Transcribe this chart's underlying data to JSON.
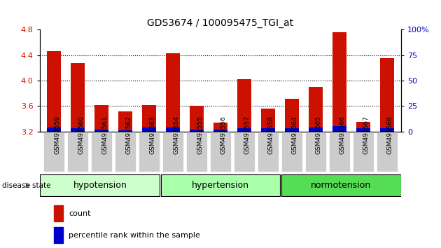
{
  "title": "GDS3674 / 100095475_TGI_at",
  "samples": [
    "GSM493559",
    "GSM493560",
    "GSM493561",
    "GSM493562",
    "GSM493563",
    "GSM493554",
    "GSM493555",
    "GSM493556",
    "GSM493557",
    "GSM493558",
    "GSM493564",
    "GSM493565",
    "GSM493566",
    "GSM493567",
    "GSM493568"
  ],
  "count_values": [
    4.46,
    4.28,
    3.61,
    3.52,
    3.61,
    4.43,
    3.6,
    3.34,
    4.02,
    3.56,
    3.71,
    3.9,
    4.76,
    3.35,
    4.35
  ],
  "percentile_values": [
    4,
    3,
    2,
    1,
    4,
    4,
    2,
    2,
    3,
    3,
    3,
    4,
    5,
    3,
    3
  ],
  "groups": [
    {
      "name": "hypotension",
      "start": 0,
      "end": 5,
      "color": "#ccffcc"
    },
    {
      "name": "hypertension",
      "start": 5,
      "end": 10,
      "color": "#aaffaa"
    },
    {
      "name": "normotension",
      "start": 10,
      "end": 15,
      "color": "#55dd55"
    }
  ],
  "ymin": 3.2,
  "ymax": 4.8,
  "y_ticks": [
    3.2,
    3.6,
    4.0,
    4.4,
    4.8
  ],
  "right_yticks": [
    0,
    25,
    50,
    75,
    100
  ],
  "right_ytick_labels": [
    "0",
    "25",
    "50",
    "75",
    "100%"
  ],
  "bar_color": "#cc1100",
  "percentile_color": "#0000cc",
  "bar_width": 0.6,
  "label_color_left": "#cc1100",
  "label_color_right": "#0000cc",
  "count_base": 3.2,
  "tick_bg_color": "#cccccc",
  "group_label_fontsize": 9,
  "sample_fontsize": 6.5,
  "title_fontsize": 10
}
